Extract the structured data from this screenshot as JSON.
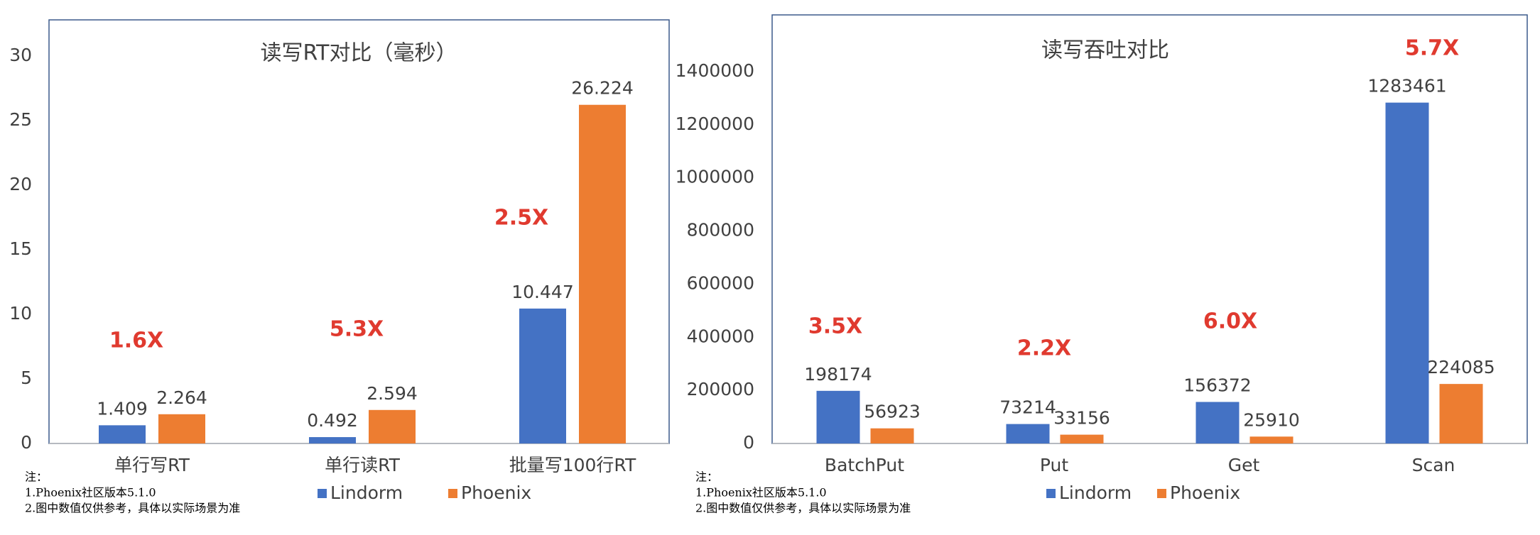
{
  "chart_data": [
    {
      "type": "bar",
      "title": "读写RT对比（毫秒）",
      "categories": [
        "单行写RT",
        "单行读RT",
        "批量写100行RT"
      ],
      "series": [
        {
          "name": "Lindorm",
          "color": "#4472c4",
          "values": [
            1.409,
            0.492,
            10.447
          ]
        },
        {
          "name": "Phoenix",
          "color": "#ed7d31",
          "values": [
            2.264,
            2.594,
            26.224
          ]
        }
      ],
      "ylim": [
        0,
        30
      ],
      "yticks": [
        0,
        5,
        10,
        15,
        20,
        25,
        30
      ],
      "annotations": [
        "1.6X",
        "5.3X",
        "2.5X"
      ],
      "notes": [
        "注：",
        "1.Phoenix社区版本5.1.0",
        "2.图中数值仅供参考，具体以实际场景为准"
      ]
    },
    {
      "type": "bar",
      "title": "读写吞吐对比",
      "categories": [
        "BatchPut",
        "Put",
        "Get",
        "Scan"
      ],
      "series": [
        {
          "name": "Lindorm",
          "color": "#4472c4",
          "values": [
            198174,
            73214,
            156372,
            1283461
          ]
        },
        {
          "name": "Phoenix",
          "color": "#ed7d31",
          "values": [
            56923,
            33156,
            25910,
            224085
          ]
        }
      ],
      "ylim": [
        0,
        1400000
      ],
      "yticks": [
        0,
        200000,
        400000,
        600000,
        800000,
        1000000,
        1200000,
        1400000
      ],
      "annotations": [
        "3.5X",
        "2.2X",
        "6.0X",
        "5.7X"
      ],
      "notes": [
        "注：",
        "1.Phoenix社区版本5.1.0",
        "2.图中数值仅供参考，具体以实际场景为准"
      ]
    }
  ]
}
